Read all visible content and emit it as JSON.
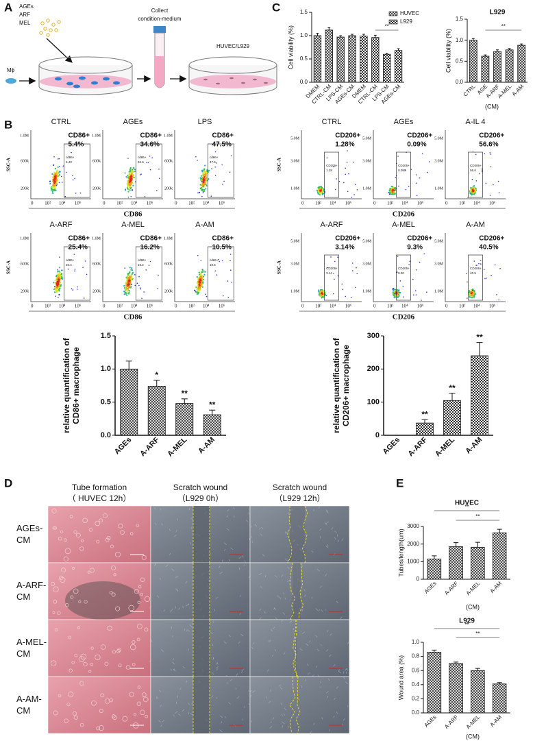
{
  "panel_labels": [
    "A",
    "B",
    "C",
    "D",
    "E"
  ],
  "panel_a": {
    "treatments": [
      "AGEs",
      "ARF",
      "MEL"
    ],
    "cell": "Mϕ",
    "step": [
      "Collect",
      "condition-medium"
    ],
    "target": "HUVEC/L929"
  },
  "flow_cytometry": [
    {
      "marker_label": "CD86",
      "y_label": "SSC-A",
      "yticks": [
        "1.0M",
        "600k",
        "200k"
      ],
      "xticks": [
        "0",
        "10²",
        "10⁴",
        "10⁶"
      ],
      "plots": [
        {
          "title": "CTRL",
          "gate": "CD86+",
          "percent": "5.4%",
          "inner_gate": "cd86+",
          "inner_value": "5.43"
        },
        {
          "title": "AGEs",
          "gate": "CD86+",
          "percent": "34.6%",
          "inner_gate": "cd86+",
          "inner_value": "34.6"
        },
        {
          "title": "LPS",
          "gate": "CD86+",
          "percent": "47.5%",
          "inner_gate": "cd86+",
          "inner_value": "47.5"
        },
        {
          "title": "A-ARF",
          "gate": "CD86+",
          "percent": "25.4%",
          "inner_gate": "cd86+",
          "inner_value": "25.4"
        },
        {
          "title": "A-MEL",
          "gate": "CD86+",
          "percent": "16.2%",
          "inner_gate": "cd86+",
          "inner_value": "16.2"
        },
        {
          "title": "A-AM",
          "gate": "CD86+",
          "percent": "10.5%",
          "inner_gate": "cd86+",
          "inner_value": "10.5"
        }
      ]
    },
    {
      "marker_label": "CD206",
      "y_label": "SSC-A",
      "yticks": [
        "5.0M",
        "3.0M",
        "1.0M"
      ],
      "xticks": [
        "0",
        "10²",
        "10⁴",
        "10⁶"
      ],
      "plots": [
        {
          "title": "CTRL",
          "gate": "CD206+",
          "percent": "1.28%",
          "inner_gate": "CD206+",
          "inner_value": "1.28"
        },
        {
          "title": "AGEs",
          "gate": "CD206+",
          "percent": "0.09%",
          "inner_gate": "CD206+",
          "inner_value": "0.093"
        },
        {
          "title": "A-IL 4",
          "gate": "CD206+",
          "percent": "56.6%",
          "inner_gate": "CD206+",
          "inner_value": "56.6"
        },
        {
          "title": "A-ARF",
          "gate": "CD206+",
          "percent": "3.14%",
          "inner_gate": "CD206+",
          "inner_value": "3.14"
        },
        {
          "title": "A-MEL",
          "gate": "CD206+",
          "percent": "9.3%",
          "inner_gate": "CD206+",
          "inner_value": "9.30"
        },
        {
          "title": "A-AM",
          "gate": "CD206+",
          "percent": "40.5%",
          "inner_gate": "CD206+",
          "inner_value": "40.5"
        }
      ]
    }
  ],
  "panel_d": {
    "columns": [
      {
        "title": "Tube formation",
        "subtitle": "（ HUVEC 12h）"
      },
      {
        "title": "Scratch wound",
        "subtitle": "（L929 0h）"
      },
      {
        "title": "Scratch wound",
        "subtitle": "（L929 12h）"
      }
    ],
    "rows": [
      [
        "AGEs-",
        "CM"
      ],
      [
        "A-ARF-",
        "CM"
      ],
      [
        "A-MEL-",
        "CM"
      ],
      [
        "A-AM-",
        "CM"
      ]
    ]
  },
  "chart_data": [
    {
      "type": "bar",
      "ylabel": "Cell viability (%)",
      "categories": [
        "DMEM",
        "CTRL-CM",
        "LPS-CM",
        "AGEs-CM",
        "DMEM",
        "CTRL-CM",
        "LPS-CM",
        "AGEs-CM"
      ],
      "series": [
        {
          "name": "HUVEC",
          "color": "#333333",
          "pattern": "crosshatch",
          "values": [
            1.0,
            1.12,
            0.97,
            1.0,
            null,
            null,
            null,
            null
          ],
          "errors": [
            0.05,
            0.05,
            0.03,
            0.03,
            null,
            null,
            null,
            null
          ]
        },
        {
          "name": "L929",
          "color": "#333333",
          "pattern": "checker",
          "values": [
            null,
            null,
            null,
            null,
            0.99,
            0.96,
            0.6,
            0.68
          ],
          "errors": [
            null,
            null,
            null,
            null,
            0.04,
            0.05,
            0.02,
            0.04
          ]
        }
      ],
      "ylim": [
        0,
        1.5
      ],
      "yticks": [
        {
          "value": 0,
          "label": "0.0"
        },
        {
          "value": 0.5,
          "label": "0.5"
        },
        {
          "value": 1,
          "label": "1.0"
        },
        {
          "value": 1.5,
          "label": "1.5"
        }
      ],
      "legend": "upper right",
      "annotations": [
        "**"
      ]
    },
    {
      "type": "bar",
      "title": "L929",
      "ylabel": "Cell viability (%)",
      "xlabel": "(CM)",
      "categories": [
        "CTRL",
        "AGE",
        "A-ARF",
        "A-MEL",
        "A-AM"
      ],
      "values": [
        1.0,
        0.62,
        0.73,
        0.77,
        0.88
      ],
      "errors": [
        0.04,
        0.03,
        0.04,
        0.03,
        0.03
      ],
      "color": "#333333",
      "pattern": "crosshatch",
      "ylim": [
        0,
        1.5
      ],
      "yticks": [
        {
          "value": 0,
          "label": "0.0"
        },
        {
          "value": 0.5,
          "label": "0.5"
        },
        {
          "value": 1,
          "label": "1.0"
        },
        {
          "value": 1.5,
          "label": "1.5"
        }
      ],
      "annotations": [
        "**"
      ]
    },
    {
      "type": "bar",
      "ylabel": [
        "relative quantification of",
        "CD86+ macrophage"
      ],
      "categories": [
        "AGEs",
        "A-ARF",
        "A-MEL",
        "A-AM"
      ],
      "values": [
        1.0,
        0.74,
        0.48,
        0.31
      ],
      "errors": [
        0.12,
        0.09,
        0.07,
        0.07
      ],
      "color": "#333333",
      "pattern": "crosshatch",
      "ylim": [
        0,
        1.5
      ],
      "yticks": [
        {
          "value": 0,
          "label": "0.0"
        },
        {
          "value": 0.5,
          "label": "0.5"
        },
        {
          "value": 1,
          "label": "1.0"
        },
        {
          "value": 1.5,
          "label": "1.5"
        }
      ],
      "annotations": [
        "*",
        "**",
        "**"
      ]
    },
    {
      "type": "bar",
      "ylabel": [
        "relative quantification of",
        "CD206+ macrophage"
      ],
      "categories": [
        "AGEs",
        "A-ARF",
        "A-MEL",
        "A-AM"
      ],
      "values": [
        0,
        37,
        105,
        240
      ],
      "errors": [
        0,
        10,
        22,
        40
      ],
      "color": "#333333",
      "pattern": "checker",
      "ylim": [
        0,
        300
      ],
      "yticks": [
        0,
        100,
        200,
        300
      ],
      "annotations": [
        "**",
        "**",
        "**"
      ]
    },
    {
      "type": "bar",
      "title": "HUVEC",
      "ylabel": "Tubes/length(um)",
      "xlabel": "(CM)",
      "categories": [
        "AGEs",
        "A-ARF",
        "A-MEL",
        "A-AM"
      ],
      "values": [
        1150,
        1850,
        1820,
        2640
      ],
      "errors": [
        180,
        230,
        280,
        200
      ],
      "color": "#333333",
      "pattern": "crosshatch",
      "ylim": [
        0,
        3000
      ],
      "yticks": [
        0,
        1000,
        2000,
        3000
      ],
      "annotations": [
        "**",
        "**"
      ]
    },
    {
      "type": "bar",
      "title": "L929",
      "ylabel": "Wound area (%)",
      "xlabel": "(CM)",
      "categories": [
        "AGEs",
        "A-ARF",
        "A-MEL",
        "A-AM"
      ],
      "values": [
        0.86,
        0.7,
        0.6,
        0.41
      ],
      "errors": [
        0.03,
        0.02,
        0.03,
        0.02
      ],
      "color": "#333333",
      "pattern": "crosshatch",
      "ylim": [
        0,
        1.0
      ],
      "yticks": [
        {
          "value": 0,
          "label": "0.0"
        },
        {
          "value": 0.2,
          "label": "0.2"
        },
        {
          "value": 0.4,
          "label": "0.4"
        },
        {
          "value": 0.6,
          "label": "0.6"
        },
        {
          "value": 0.8,
          "label": "0.8"
        },
        {
          "value": 1.0,
          "label": "1.0"
        }
      ],
      "annotations": [
        "**",
        "**"
      ]
    }
  ]
}
